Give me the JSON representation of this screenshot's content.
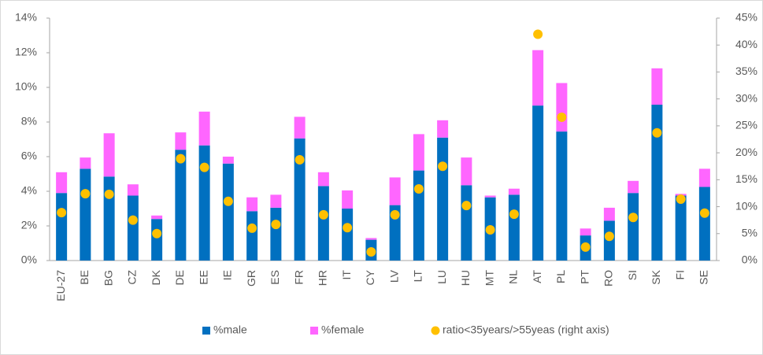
{
  "chart_data": {
    "type": "bar",
    "stacked": true,
    "categories": [
      "EU-27",
      "BE",
      "BG",
      "CZ",
      "DK",
      "DE",
      "EE",
      "IE",
      "GR",
      "ES",
      "FR",
      "HR",
      "IT",
      "CY",
      "LV",
      "LT",
      "LU",
      "HU",
      "MT",
      "NL",
      "AT",
      "PL",
      "PT",
      "RO",
      "SI",
      "SK",
      "FI",
      "SE"
    ],
    "series": [
      {
        "name": "%male",
        "type": "bar",
        "color": "#0070c0",
        "values": [
          3.9,
          5.3,
          4.85,
          3.75,
          2.4,
          6.4,
          6.65,
          5.6,
          2.85,
          3.05,
          7.05,
          4.3,
          3.0,
          1.2,
          3.2,
          5.2,
          7.1,
          4.35,
          3.65,
          3.8,
          8.95,
          7.45,
          1.45,
          2.3,
          3.9,
          9.0,
          3.75,
          4.25
        ]
      },
      {
        "name": "%female",
        "type": "bar",
        "color": "#ff66ff",
        "values": [
          1.2,
          0.65,
          2.5,
          0.65,
          0.2,
          1.0,
          1.95,
          0.4,
          0.8,
          0.75,
          1.25,
          0.8,
          1.05,
          0.1,
          1.6,
          2.1,
          1.0,
          1.6,
          0.1,
          0.35,
          3.2,
          2.8,
          0.4,
          0.75,
          0.7,
          2.1,
          0.1,
          1.05
        ]
      },
      {
        "name": "ratio<35years/>55yeas (right axis)",
        "type": "scatter",
        "axis": "y2",
        "color": "#ffc000",
        "values": [
          8.9,
          12.4,
          12.3,
          7.5,
          5.0,
          18.9,
          17.3,
          11.0,
          6.0,
          6.7,
          18.7,
          8.5,
          6.1,
          1.6,
          8.5,
          13.3,
          17.5,
          10.2,
          5.7,
          8.6,
          42.0,
          26.6,
          2.5,
          4.5,
          8.0,
          23.7,
          11.4,
          8.8
        ]
      }
    ],
    "ylim": [
      0,
      14
    ],
    "yticks": [
      {
        "value": 0,
        "label": "0%"
      },
      {
        "value": 2,
        "label": "2%"
      },
      {
        "value": 4,
        "label": "4%"
      },
      {
        "value": 6,
        "label": "6%"
      },
      {
        "value": 8,
        "label": "8%"
      },
      {
        "value": 10,
        "label": "10%"
      },
      {
        "value": 12,
        "label": "12%"
      },
      {
        "value": 14,
        "label": "14%"
      }
    ],
    "y2lim": [
      0,
      45
    ],
    "y2ticks": [
      {
        "value": 0,
        "label": "0%"
      },
      {
        "value": 5,
        "label": "5%"
      },
      {
        "value": 10,
        "label": "10%"
      },
      {
        "value": 15,
        "label": "15%"
      },
      {
        "value": 20,
        "label": "20%"
      },
      {
        "value": 25,
        "label": "25%"
      },
      {
        "value": 30,
        "label": "30%"
      },
      {
        "value": 35,
        "label": "35%"
      },
      {
        "value": 40,
        "label": "40%"
      },
      {
        "value": 45,
        "label": "45%"
      }
    ],
    "grid": false,
    "legend": "bottom"
  }
}
